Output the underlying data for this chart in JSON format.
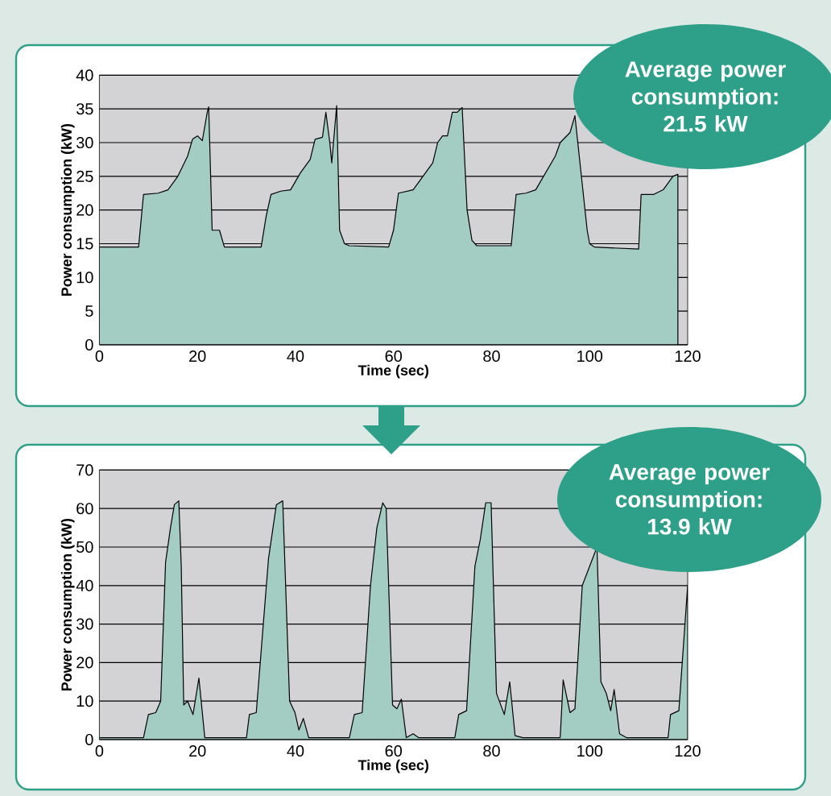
{
  "chart_data": [
    {
      "type": "area",
      "xlabel": "Time (sec)",
      "ylabel": "Power consumption (kW)",
      "xlim": [
        0,
        120
      ],
      "xticks": [
        0,
        20,
        40,
        60,
        80,
        100,
        120
      ],
      "ylim": [
        0,
        40
      ],
      "yticks": [
        0,
        5,
        10,
        15,
        20,
        25,
        30,
        35,
        40
      ],
      "grid": "y",
      "annotations": [
        "Average power consumption: 21.5 kW"
      ],
      "series": [
        {
          "color": "#a3cdc2",
          "x": [
            0,
            8,
            9,
            12,
            14,
            16,
            18,
            19,
            20,
            21,
            22,
            22.3,
            23,
            24.5,
            25.5,
            33,
            34,
            35,
            37,
            39,
            41,
            43,
            44,
            45.5,
            46.2,
            47,
            47.4,
            48.4,
            49,
            50,
            51,
            59,
            60,
            61,
            64,
            66,
            68,
            69,
            70,
            71,
            72,
            73,
            74,
            75,
            76,
            77,
            84,
            85,
            87,
            89,
            91,
            93,
            94,
            96,
            97,
            98.5,
            99.5,
            100,
            101,
            110,
            110.5,
            113,
            115,
            117,
            118
          ],
          "values": [
            14.5,
            14.5,
            22.3,
            22.5,
            23,
            25,
            28,
            30.5,
            31,
            30.3,
            34.5,
            35.3,
            17,
            17,
            14.5,
            14.5,
            19,
            22.3,
            22.8,
            23,
            25.5,
            27.5,
            30.5,
            30.8,
            34.5,
            30,
            27,
            35.5,
            17,
            15,
            14.7,
            14.5,
            17,
            22.5,
            23,
            25,
            27,
            30,
            31,
            31,
            34.5,
            34.5,
            35.2,
            20,
            15.5,
            14.7,
            14.7,
            22.3,
            22.5,
            23,
            25.5,
            28,
            30,
            31.5,
            34,
            null,
            17,
            15,
            14.5,
            14.2,
            22.3,
            22.3,
            23,
            25,
            25.3
          ]
        }
      ]
    },
    {
      "type": "area",
      "xlabel": "Time (sec)",
      "ylabel": "Power consumption (kW)",
      "xlim": [
        0,
        120
      ],
      "xticks": [
        0,
        20,
        40,
        60,
        80,
        100,
        120
      ],
      "ylim": [
        0,
        70
      ],
      "yticks": [
        0,
        10,
        20,
        30,
        40,
        50,
        60,
        70
      ],
      "grid": "y",
      "annotations": [
        "Average power consumption: 13.9 kW"
      ],
      "series": [
        {
          "color": "#a3cdc2",
          "x": [
            0,
            9,
            10,
            11.5,
            12.5,
            13.5,
            14.5,
            15.3,
            16.2,
            16.7,
            17.2,
            18,
            19.1,
            20.3,
            21.5,
            30,
            30.6,
            32,
            34.5,
            36.1,
            37.4,
            38.8,
            39.9,
            40.7,
            41.6,
            42.7,
            51,
            52,
            53.6,
            55.3,
            56.6,
            57.8,
            58.5,
            59.8,
            60.7,
            61.6,
            62.6,
            64,
            65.1,
            72.5,
            73.3,
            74.9,
            76.6,
            77.7,
            78.8,
            79.9,
            81,
            82.6,
            83.7,
            84.8,
            86.4,
            94,
            94.6,
            96,
            97,
            98.5,
            99.5,
            100.5,
            101.5,
            102.3,
            103.4,
            104.3,
            105,
            106.1,
            107.5,
            116,
            116.5,
            118.2,
            120
          ],
          "values": [
            0.5,
            0.5,
            6.5,
            7,
            10,
            46,
            55,
            61,
            62,
            45,
            9,
            10,
            6.5,
            16,
            0.5,
            0.5,
            6.5,
            7,
            47,
            61,
            62,
            10,
            7,
            2.5,
            5.5,
            0.5,
            0.5,
            6.5,
            7,
            40,
            55,
            61.5,
            60,
            9,
            8,
            10.5,
            0.5,
            1.5,
            0.5,
            0.5,
            6.5,
            7.5,
            45,
            52,
            61.5,
            61.5,
            12,
            6.5,
            15,
            1,
            0.5,
            0.5,
            15.5,
            7,
            8,
            40,
            null,
            null,
            50,
            15,
            12,
            7.5,
            13,
            1.5,
            0.5,
            0.5,
            6.5,
            7.5,
            40
          ]
        }
      ]
    }
  ]
}
